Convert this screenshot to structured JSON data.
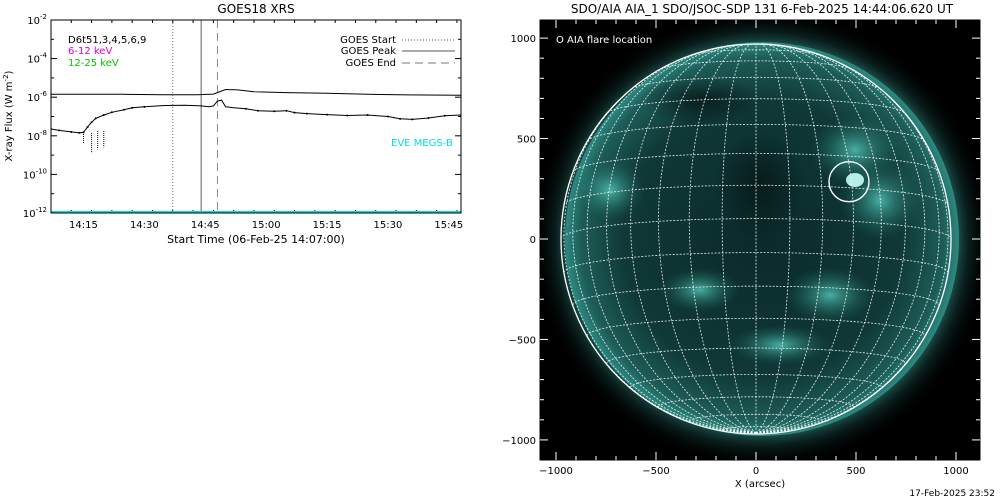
{
  "chart_data": [
    {
      "type": "line",
      "title": "GOES18 XRS",
      "xlabel": "Start Time (06-Feb-25 14:07:00)",
      "ylabel": "X-ray Flux (W m",
      "ylabel_sup": "-2",
      "ylabel_close": ")",
      "yscale": "log",
      "xlim": [
        7,
        108
      ],
      "ylim_exponent": [
        -12,
        -2
      ],
      "x_unit": "minutes after 14:00 UT",
      "x_ticks": [
        {
          "t": 15,
          "label": "14:15"
        },
        {
          "t": 30,
          "label": "14:30"
        },
        {
          "t": 45,
          "label": "14:45"
        },
        {
          "t": 60,
          "label": "15:00"
        },
        {
          "t": 75,
          "label": "15:15"
        },
        {
          "t": 90,
          "label": "15:30"
        },
        {
          "t": 105,
          "label": "15:45"
        }
      ],
      "y_ticks": [
        {
          "e": -2,
          "label": "10",
          "sup": "-2"
        },
        {
          "e": -4,
          "label": "10",
          "sup": "-4"
        },
        {
          "e": -6,
          "label": "10",
          "sup": "-6"
        },
        {
          "e": -8,
          "label": "10",
          "sup": "-8"
        },
        {
          "e": -10,
          "label": "10",
          "sup": "-10"
        },
        {
          "e": -12,
          "label": "10",
          "sup": "-12"
        }
      ],
      "legend_left": [
        {
          "text": "D6t51,3,4,5,6,9",
          "color": "#000000"
        },
        {
          "text": "6-12 keV",
          "color": "#d600d6"
        },
        {
          "text": "12-25 keV",
          "color": "#00c000"
        }
      ],
      "legend_right": [
        {
          "text": "GOES Start",
          "style": "dotted"
        },
        {
          "text": "GOES Peak",
          "style": "solid"
        },
        {
          "text": "GOES End",
          "style": "dashed"
        }
      ],
      "eve_label": "EVE MEGS-B",
      "eve_color": "#00e0e0",
      "markers": {
        "start": 37,
        "peak": 44,
        "end": 48
      },
      "series": [
        {
          "name": "GOES long channel",
          "color": "#000000",
          "points": [
            [
              7,
              -5.85
            ],
            [
              15,
              -5.85
            ],
            [
              25,
              -5.85
            ],
            [
              35,
              -5.87
            ],
            [
              43,
              -5.87
            ],
            [
              47,
              -5.84
            ],
            [
              50,
              -5.6
            ],
            [
              53,
              -5.62
            ],
            [
              57,
              -5.72
            ],
            [
              65,
              -5.76
            ],
            [
              75,
              -5.8
            ],
            [
              85,
              -5.85
            ],
            [
              95,
              -5.88
            ],
            [
              108,
              -5.9
            ]
          ]
        },
        {
          "name": "GOES short channel",
          "color": "#000000",
          "points": [
            [
              7,
              -7.65
            ],
            [
              9,
              -7.72
            ],
            [
              12,
              -7.8
            ],
            [
              14,
              -7.85
            ],
            [
              15,
              -7.82
            ],
            [
              16,
              -7.55
            ],
            [
              17,
              -7.3
            ],
            [
              18,
              -7.1
            ],
            [
              20,
              -6.92
            ],
            [
              22,
              -6.78
            ],
            [
              25,
              -6.65
            ],
            [
              27,
              -6.55
            ],
            [
              30,
              -6.5
            ],
            [
              35,
              -6.43
            ],
            [
              40,
              -6.42
            ],
            [
              44,
              -6.45
            ],
            [
              46,
              -6.5
            ],
            [
              47,
              -6.45
            ],
            [
              48,
              -6.2
            ],
            [
              49,
              -6.15
            ],
            [
              50,
              -6.5
            ],
            [
              52,
              -6.55
            ],
            [
              55,
              -6.6
            ],
            [
              58,
              -6.7
            ],
            [
              62,
              -6.73
            ],
            [
              65,
              -6.7
            ],
            [
              67,
              -6.8
            ],
            [
              70,
              -6.85
            ],
            [
              75,
              -6.9
            ],
            [
              80,
              -6.95
            ],
            [
              85,
              -6.92
            ],
            [
              90,
              -7.0
            ],
            [
              93,
              -7.12
            ],
            [
              96,
              -7.15
            ],
            [
              100,
              -7.08
            ],
            [
              104,
              -6.96
            ],
            [
              108,
              -6.92
            ]
          ]
        },
        {
          "name": "EVE baseline",
          "color": "#00e0e0",
          "points": [
            [
              7,
              -11.95
            ],
            [
              108,
              -11.95
            ]
          ]
        }
      ]
    },
    {
      "type": "scatter",
      "title": "SDO/AIA AIA_1 SDO/JSOC-SDP 131  6-Feb-2025 14:44:06.620 UT",
      "xlabel": "X (arcsec)",
      "ylabel": "",
      "xlim": [
        -1080,
        1120
      ],
      "ylim": [
        -1100,
        1090
      ],
      "x_ticks": [
        -1000,
        -500,
        0,
        500,
        1000
      ],
      "y_ticks": [
        1000,
        500,
        0,
        -500,
        -1000
      ],
      "x_tick_labels": [
        "−1000",
        "−500",
        "0",
        "500",
        "1000"
      ],
      "y_tick_labels": [
        "1000",
        "500",
        "0",
        "−500",
        "−1000"
      ],
      "solar_radius": 975,
      "b0_deg": -6,
      "legend": "O AIA flare location",
      "flare_location": [
        465,
        285
      ],
      "flare_radius": 100
    }
  ],
  "footer": {
    "timestamp": "17-Feb-2025 23:52"
  }
}
